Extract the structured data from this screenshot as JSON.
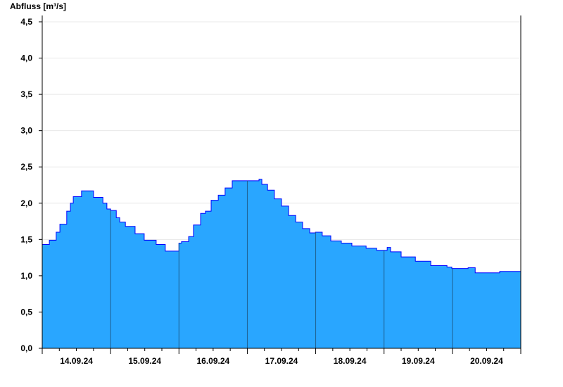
{
  "chart_data": {
    "type": "area",
    "title": "",
    "ylabel": "Abfluss [m³/s]",
    "xlabel": "",
    "ylim": [
      0,
      4.5
    ],
    "yticks": [
      "0,0",
      "0,5",
      "1,0",
      "1,5",
      "2,0",
      "2,5",
      "3,0",
      "3,5",
      "4,0",
      "4,5"
    ],
    "x_unit": "hours since 14.09.24 00:00",
    "xlim": [
      0,
      168
    ],
    "day_labels": [
      "14.09.24",
      "15.09.24",
      "16.09.24",
      "17.09.24",
      "18.09.24",
      "19.09.24",
      "20.09.24"
    ],
    "grid": true,
    "fill_color": "#29a6ff",
    "line_color": "#0000ff",
    "series": [
      {
        "name": "Abfluss",
        "points": [
          [
            0,
            1.43
          ],
          [
            2.5,
            1.49
          ],
          [
            4.9,
            1.6
          ],
          [
            6.2,
            1.71
          ],
          [
            8.6,
            1.89
          ],
          [
            9.9,
            2.0
          ],
          [
            10.9,
            2.09
          ],
          [
            13.8,
            2.17
          ],
          [
            18,
            2.08
          ],
          [
            21.3,
            2.0
          ],
          [
            22.7,
            1.92
          ],
          [
            24,
            1.9
          ],
          [
            26,
            1.8
          ],
          [
            27.2,
            1.74
          ],
          [
            29.2,
            1.68
          ],
          [
            32.6,
            1.58
          ],
          [
            35.8,
            1.49
          ],
          [
            40,
            1.43
          ],
          [
            43.2,
            1.34
          ],
          [
            48,
            1.45
          ],
          [
            48.9,
            1.47
          ],
          [
            51.4,
            1.54
          ],
          [
            53.1,
            1.7
          ],
          [
            55.6,
            1.86
          ],
          [
            57.3,
            1.89
          ],
          [
            59.3,
            2.04
          ],
          [
            61.8,
            2.11
          ],
          [
            64.2,
            2.21
          ],
          [
            66.7,
            2.31
          ],
          [
            76.1,
            2.33
          ],
          [
            77.1,
            2.26
          ],
          [
            79.1,
            2.18
          ],
          [
            81.5,
            2.06
          ],
          [
            84,
            1.96
          ],
          [
            86.5,
            1.83
          ],
          [
            89,
            1.74
          ],
          [
            91.4,
            1.65
          ],
          [
            93.9,
            1.59
          ],
          [
            95.9,
            1.6
          ],
          [
            98.3,
            1.55
          ],
          [
            101.3,
            1.48
          ],
          [
            105,
            1.45
          ],
          [
            108.7,
            1.41
          ],
          [
            113.7,
            1.38
          ],
          [
            117.4,
            1.35
          ],
          [
            121.1,
            1.39
          ],
          [
            122.3,
            1.33
          ],
          [
            126,
            1.26
          ],
          [
            131,
            1.2
          ],
          [
            136.4,
            1.14
          ],
          [
            142.1,
            1.12
          ],
          [
            143.8,
            1.1
          ],
          [
            147,
            1.1
          ],
          [
            149.5,
            1.11
          ],
          [
            152,
            1.04
          ],
          [
            160.6,
            1.06
          ],
          [
            168,
            1.08
          ]
        ]
      }
    ]
  }
}
